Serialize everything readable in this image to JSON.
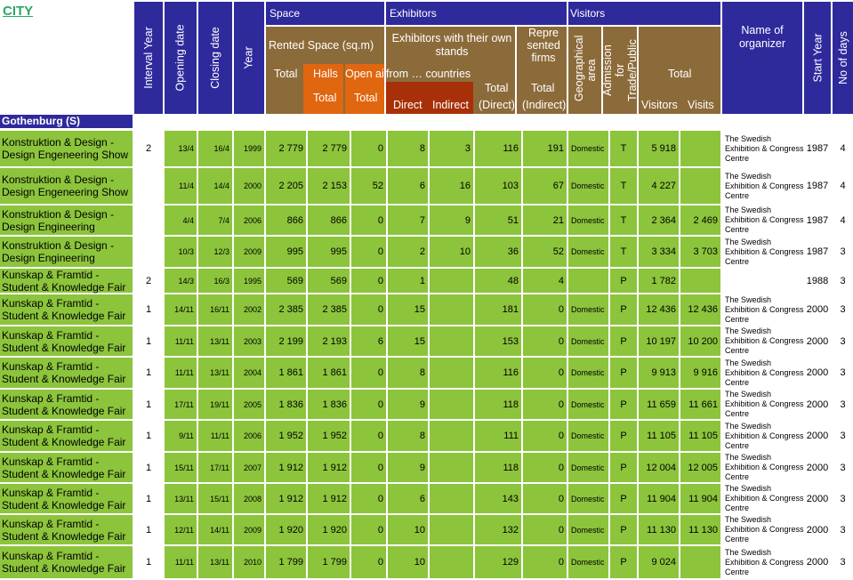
{
  "city": "CITY",
  "section": "Gothenburg (S)",
  "headers": {
    "interval_year": "Interval Year",
    "opening_date": "Opening date",
    "closing_date": "Closing date",
    "year": "Year",
    "space": "Space",
    "rented_space": "Rented Space (sq.m)",
    "total": "Total",
    "halls": "Halls",
    "open_air": "Open air",
    "halls_total": "Total",
    "open_air_total": "Total",
    "exhibitors": "Exhibitors",
    "exhibitors_own_stands": "Exhibitors with their own stands",
    "from_countries": "from … countries",
    "direct": "Direct",
    "indirect": "Indirect",
    "total_direct_1": "Total",
    "total_direct_2": "(Direct)",
    "represented_firms": "Repre sented firms",
    "total_indirect_1": "Total",
    "total_indirect_2": "(Indirect)",
    "visitors": "Visitors",
    "geo_area": "Geographical area",
    "admission": "Admission for Trade/Public",
    "visitors_total": "Total",
    "visitors_sub": "Visitors",
    "visits_sub": "Visits",
    "organizer": "Name of organizer",
    "start_year": "Start Year",
    "no_of_days": "No of days"
  },
  "rows": [
    {
      "name": "Konstruktion & Design - Design Engeneering Show",
      "interval": "2",
      "open": "13/4",
      "close": "16/4",
      "year": "1999",
      "total": "2 779",
      "halls": "2 779",
      "open_air": "0",
      "direct": "8",
      "indirect": "3",
      "tot_direct": "116",
      "tot_indirect": "191",
      "geo": "Domestic",
      "adm": "T",
      "visitors": "5 918",
      "visits": "",
      "org": "The Swedish Exhibition & Congress Centre",
      "start": "1987",
      "days": "4"
    },
    {
      "name": "Konstruktion & Design - Design Engeneering Show",
      "interval": "",
      "open": "11/4",
      "close": "14/4",
      "year": "2000",
      "total": "2 205",
      "halls": "2 153",
      "open_air": "52",
      "direct": "6",
      "indirect": "16",
      "tot_direct": "103",
      "tot_indirect": "67",
      "geo": "Domestic",
      "adm": "T",
      "visitors": "4 227",
      "visits": "",
      "org": "The Swedish Exhibition & Congress Centre",
      "start": "1987",
      "days": "4"
    },
    {
      "name": "Konstruktion & Design - Design Engineering",
      "interval": "",
      "open": "4/4",
      "close": "7/4",
      "year": "2006",
      "total": "866",
      "halls": "866",
      "open_air": "0",
      "direct": "7",
      "indirect": "9",
      "tot_direct": "51",
      "tot_indirect": "21",
      "geo": "Domestic",
      "adm": "T",
      "visitors": "2 364",
      "visits": "2 469",
      "org": "The Swedish Exhibition & Congress Centre",
      "start": "1987",
      "days": "4"
    },
    {
      "name": "Konstruktion & Design - Design Engineering",
      "interval": "",
      "open": "10/3",
      "close": "12/3",
      "year": "2009",
      "total": "995",
      "halls": "995",
      "open_air": "0",
      "direct": "2",
      "indirect": "10",
      "tot_direct": "36",
      "tot_indirect": "52",
      "geo": "Domestic",
      "adm": "T",
      "visitors": "3 334",
      "visits": "3 703",
      "org": "The Swedish Exhibition & Congress Centre",
      "start": "1987",
      "days": "3"
    },
    {
      "name": "Kunskap & Framtid - Student & Knowledge Fair",
      "interval": "2",
      "open": "14/3",
      "close": "16/3",
      "year": "1995",
      "total": "569",
      "halls": "569",
      "open_air": "0",
      "direct": "1",
      "indirect": "",
      "tot_direct": "48",
      "tot_indirect": "4",
      "geo": "",
      "adm": "P",
      "visitors": "1 782",
      "visits": "",
      "org": "",
      "start": "1988",
      "days": "3"
    },
    {
      "name": "Kunskap & Framtid - Student & Knowledge Fair",
      "interval": "1",
      "open": "14/11",
      "close": "16/11",
      "year": "2002",
      "total": "2 385",
      "halls": "2 385",
      "open_air": "0",
      "direct": "15",
      "indirect": "",
      "tot_direct": "181",
      "tot_indirect": "0",
      "geo": "Domestic",
      "adm": "P",
      "visitors": "12 436",
      "visits": "12 436",
      "org": "The Swedish Exhibition & Congress Centre",
      "start": "2000",
      "days": "3"
    },
    {
      "name": "Kunskap & Framtid - Student & Knowledge Fair",
      "interval": "1",
      "open": "11/11",
      "close": "13/11",
      "year": "2003",
      "total": "2 199",
      "halls": "2 193",
      "open_air": "6",
      "direct": "15",
      "indirect": "",
      "tot_direct": "153",
      "tot_indirect": "0",
      "geo": "Domestic",
      "adm": "P",
      "visitors": "10 197",
      "visits": "10 200",
      "org": "The Swedish Exhibition & Congress Centre",
      "start": "2000",
      "days": "3"
    },
    {
      "name": "Kunskap & Framtid - Student & Knowledge Fair",
      "interval": "1",
      "open": "11/11",
      "close": "13/11",
      "year": "2004",
      "total": "1 861",
      "halls": "1 861",
      "open_air": "0",
      "direct": "8",
      "indirect": "",
      "tot_direct": "116",
      "tot_indirect": "0",
      "geo": "Domestic",
      "adm": "P",
      "visitors": "9 913",
      "visits": "9 916",
      "org": "The Swedish Exhibition & Congress Centre",
      "start": "2000",
      "days": "3"
    },
    {
      "name": "Kunskap & Framtid - Student & Knowledge Fair",
      "interval": "1",
      "open": "17/11",
      "close": "19/11",
      "year": "2005",
      "total": "1 836",
      "halls": "1 836",
      "open_air": "0",
      "direct": "9",
      "indirect": "",
      "tot_direct": "118",
      "tot_indirect": "0",
      "geo": "Domestic",
      "adm": "P",
      "visitors": "11 659",
      "visits": "11 661",
      "org": "The Swedish Exhibition & Congress Centre",
      "start": "2000",
      "days": "3"
    },
    {
      "name": "Kunskap & Framtid - Student & Knowledge Fair",
      "interval": "1",
      "open": "9/11",
      "close": "11/11",
      "year": "2006",
      "total": "1 952",
      "halls": "1 952",
      "open_air": "0",
      "direct": "8",
      "indirect": "",
      "tot_direct": "111",
      "tot_indirect": "0",
      "geo": "Domestic",
      "adm": "P",
      "visitors": "11 105",
      "visits": "11 105",
      "org": "The Swedish Exhibition & Congress Centre",
      "start": "2000",
      "days": "3"
    },
    {
      "name": "Kunskap & Framtid - Student & Knowledge Fair",
      "interval": "1",
      "open": "15/11",
      "close": "17/11",
      "year": "2007",
      "total": "1 912",
      "halls": "1 912",
      "open_air": "0",
      "direct": "9",
      "indirect": "",
      "tot_direct": "118",
      "tot_indirect": "0",
      "geo": "Domestic",
      "adm": "P",
      "visitors": "12 004",
      "visits": "12 005",
      "org": "The Swedish Exhibition & Congress Centre",
      "start": "2000",
      "days": "3"
    },
    {
      "name": "Kunskap & Framtid - Student & Knowledge Fair",
      "interval": "1",
      "open": "13/11",
      "close": "15/11",
      "year": "2008",
      "total": "1 912",
      "halls": "1 912",
      "open_air": "0",
      "direct": "6",
      "indirect": "",
      "tot_direct": "143",
      "tot_indirect": "0",
      "geo": "Domestic",
      "adm": "P",
      "visitors": "11 904",
      "visits": "11 904",
      "org": "The Swedish Exhibition & Congress Centre",
      "start": "2000",
      "days": "3"
    },
    {
      "name": "Kunskap & Framtid - Student & Knowledge Fair",
      "interval": "1",
      "open": "12/11",
      "close": "14/11",
      "year": "2009",
      "total": "1 920",
      "halls": "1 920",
      "open_air": "0",
      "direct": "10",
      "indirect": "",
      "tot_direct": "132",
      "tot_indirect": "0",
      "geo": "Domestic",
      "adm": "P",
      "visitors": "11 130",
      "visits": "11 130",
      "org": "The Swedish Exhibition & Congress Centre",
      "start": "2000",
      "days": "3"
    },
    {
      "name": "Kunskap & Framtid - Student & Knowledge Fair",
      "interval": "1",
      "open": "11/11",
      "close": "13/11",
      "year": "2010",
      "total": "1 799",
      "halls": "1 799",
      "open_air": "0",
      "direct": "10",
      "indirect": "",
      "tot_direct": "129",
      "tot_indirect": "0",
      "geo": "Domestic",
      "adm": "P",
      "visitors": "9 024",
      "visits": "",
      "org": "The Swedish Exhibition & Congress Centre",
      "start": "2000",
      "days": "3"
    }
  ]
}
